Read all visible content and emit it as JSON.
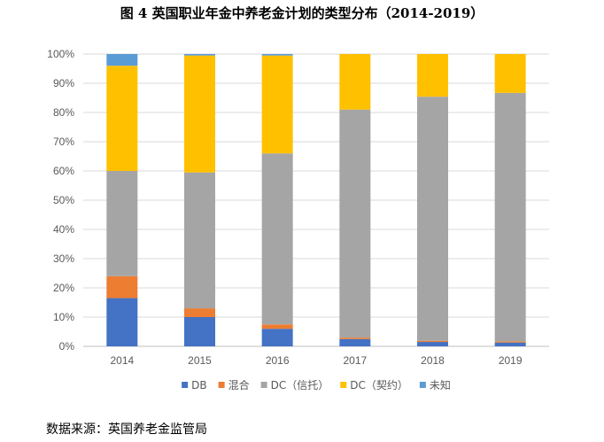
{
  "title": "图 4  英国职业年金中养老金计划的类型分布（2014-2019）",
  "source": "数据来源：英国养老金监管局",
  "chart_data": {
    "type": "bar",
    "stacked": true,
    "categories": [
      "2014",
      "2015",
      "2016",
      "2017",
      "2018",
      "2019"
    ],
    "series": [
      {
        "name": "DB",
        "color": "#4472C4",
        "values": [
          16.5,
          10,
          6,
          2.5,
          1.5,
          1.3
        ]
      },
      {
        "name": "混合",
        "color": "#ED7D31",
        "values": [
          7.5,
          3,
          1.5,
          0.5,
          0.4,
          0.4
        ]
      },
      {
        "name": "DC（信托）",
        "color": "#A5A5A5",
        "values": [
          36,
          46.5,
          58.5,
          78,
          83.5,
          85
        ]
      },
      {
        "name": "DC（契约）",
        "color": "#FFC000",
        "values": [
          36,
          40,
          33.5,
          19,
          14.6,
          13.3
        ]
      },
      {
        "name": "未知",
        "color": "#5B9BD5",
        "values": [
          4,
          0.5,
          0.5,
          0,
          0,
          0
        ]
      }
    ],
    "ylim": [
      0,
      100
    ],
    "yticks": [
      "0%",
      "10%",
      "20%",
      "30%",
      "40%",
      "50%",
      "60%",
      "70%",
      "80%",
      "90%",
      "100%"
    ],
    "grid": true,
    "legend_position": "bottom"
  }
}
